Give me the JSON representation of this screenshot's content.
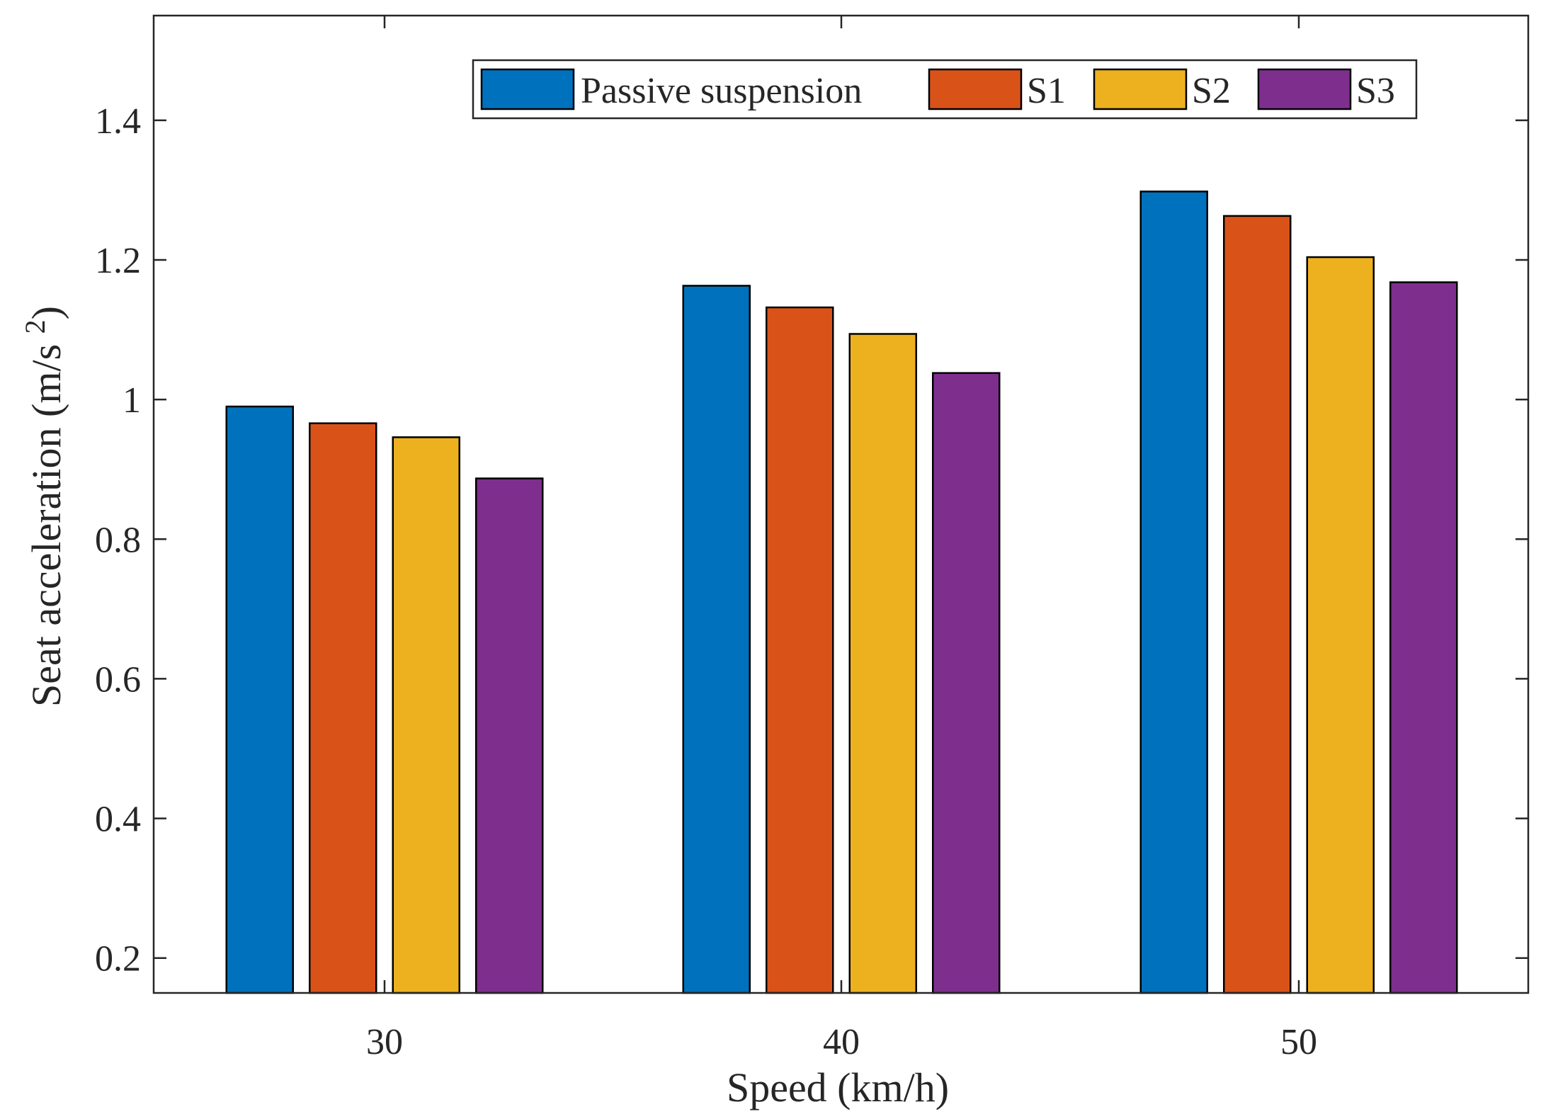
{
  "chart_data": {
    "type": "bar",
    "xlabel": "Speed (km/h)",
    "ylabel": "Seat acceleration (m/s ",
    "ylabel_superscript": "2",
    "ylabel_close": ")",
    "categories": [
      "30",
      "40",
      "50"
    ],
    "series": [
      {
        "name": "Passive suspension",
        "color": "#0072BD",
        "values": [
          0.99,
          1.163,
          1.298
        ]
      },
      {
        "name": "S1",
        "color": "#D95319",
        "values": [
          0.966,
          1.132,
          1.263
        ]
      },
      {
        "name": "S2",
        "color": "#EDB120",
        "values": [
          0.946,
          1.094,
          1.204
        ]
      },
      {
        "name": "S3",
        "color": "#7E2F8E",
        "values": [
          0.887,
          1.038,
          1.168
        ]
      }
    ],
    "ylim": [
      0.15,
      1.55
    ],
    "yticks": [
      0.2,
      0.4,
      0.6,
      0.8,
      1,
      1.2,
      1.4
    ],
    "ytick_labels": [
      "0.2",
      "0.4",
      "0.6",
      "0.8",
      "1",
      "1.2",
      "1.4"
    ],
    "grid": false,
    "legend_position": "top-right",
    "legend_orientation": "horizontal"
  }
}
